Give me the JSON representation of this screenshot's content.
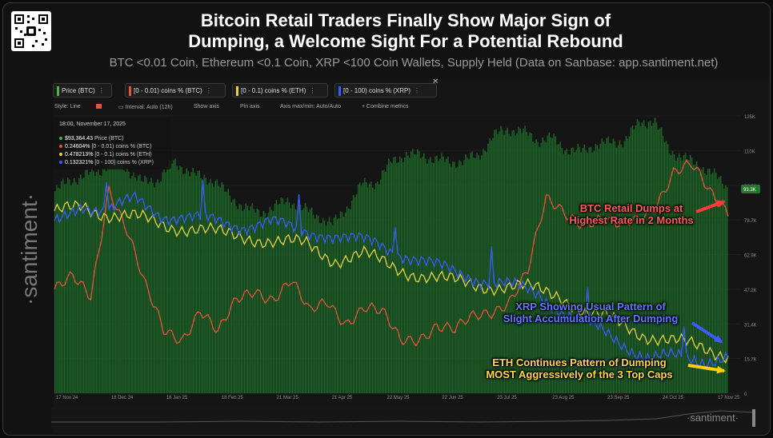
{
  "header": {
    "title_line1": "Bitcoin Retail Traders Finally Show Major Sign of",
    "title_line2": "Dumping, a Welcome Sight For a Potential Rebound",
    "subtitle": "BTC <0.01 Coin, Ethereum <0.1 Coin, XRP <100 Coin Wallets, Supply Held (Data on Sanbase: app.santiment.net)"
  },
  "brand": {
    "side_logo": "·santiment·",
    "watermark": "·santiment·"
  },
  "chips": [
    {
      "label": "Price (BTC)",
      "color": "#4caf50"
    },
    {
      "label": "[0 - 0.01) coins % (BTC)",
      "color": "#e8533a"
    },
    {
      "label": "[0 - 0.1) coins % (ETH)",
      "color": "#e8d23a"
    },
    {
      "label": "[0 - 100) coins % (XRP)",
      "color": "#3a5bff"
    }
  ],
  "toolbar": {
    "style": "Style: Line",
    "interval": "Interval: Auto (12h)",
    "show_axis": "Show axis",
    "pin_axis": "Pin axis",
    "axis_max": "Axis max/min: Auto/Auto",
    "combine": "+ Combine metrics"
  },
  "tooltip": {
    "date": "18:00, November 17, 2025",
    "rows": [
      {
        "value": "$93,364.43",
        "name": "Price (BTC)",
        "color": "#4caf50"
      },
      {
        "value": "0.24604%",
        "name": "[0 - 0.01) coins % (BTC)",
        "color": "#e8533a"
      },
      {
        "value": "0.478213%",
        "name": "[0 - 0.1) coins % (ETH)",
        "color": "#e8d23a"
      },
      {
        "value": "0.132321%",
        "name": "[0 - 100) coins % (XRP)",
        "color": "#3a5bff"
      }
    ]
  },
  "annotations": {
    "btc": [
      "BTC Retail Dumps at",
      "Highest Rate in 2 Months"
    ],
    "xrp": [
      "XRP Showing Usual Pattern of",
      "Slight Accumulation After Dumping"
    ],
    "eth": [
      "ETH Continues Pattern of Dumping",
      "MOST Aggressively of the 3 Top Caps"
    ]
  },
  "colors": {
    "btc_price": "#1f6f2a",
    "btc_retail": "#e8533a",
    "eth_retail": "#e8d23a",
    "xrp_retail": "#3a5bff",
    "background": "#121212"
  },
  "chart_data": {
    "type": "line",
    "x_ticks": [
      "17 Nov 24",
      "18 Dec 24",
      "18 Jan 25",
      "18 Feb 25",
      "21 Mar 25",
      "21 Apr 25",
      "22 May 25",
      "22 Jun 25",
      "23 Jul 25",
      "23 Aug 25",
      "23 Sep 25",
      "24 Oct 25",
      "17 Nov 25"
    ],
    "y_ticks": [
      "125K",
      "110K",
      "93.3K",
      "78.7K",
      "62.9K",
      "47.2K",
      "31.4K",
      "15.7K",
      "0"
    ],
    "y_max": 125000,
    "current_price_label": "93.3K",
    "series": [
      {
        "name": "Price (BTC)",
        "color": "#1f6f2a",
        "style": "bars",
        "values": [
          91000,
          96000,
          98000,
          100000,
          105000,
          101000,
          95000,
          96000,
          104000,
          101000,
          97000,
          96000,
          88000,
          84000,
          81000,
          84000,
          87000,
          83000,
          80000,
          76000,
          84000,
          94000,
          95000,
          104000,
          108000,
          107000,
          106000,
          104000,
          105000,
          107000,
          116000,
          119000,
          118000,
          114000,
          115000,
          110000,
          109000,
          112000,
          113000,
          114000,
          122000,
          123000,
          110000,
          106000,
          103000,
          99000,
          93000
        ]
      },
      {
        "name": "[0 - 0.01) coins % (BTC)",
        "color": "#e8533a",
        "values": [
          0.2,
          0.205,
          0.195,
          0.26,
          0.235,
          0.2,
          0.175,
          0.172,
          0.19,
          0.174,
          0.192,
          0.2,
          0.196,
          0.205,
          0.185,
          0.193,
          0.182,
          0.19,
          0.185,
          0.17,
          0.173,
          0.18,
          0.175,
          0.183,
          0.188,
          0.195,
          0.21,
          0.25,
          0.245,
          0.24,
          0.24,
          0.235,
          0.24,
          0.25,
          0.268,
          0.27,
          0.255,
          0.246
        ]
      },
      {
        "name": "[0 - 0.1) coins % (ETH)",
        "color": "#e8d23a",
        "values": [
          0.62,
          0.63,
          0.62,
          0.616,
          0.61,
          0.606,
          0.6,
          0.598,
          0.592,
          0.59,
          0.575,
          0.58,
          0.568,
          0.56,
          0.553,
          0.55,
          0.548,
          0.545,
          0.54,
          0.52,
          0.512,
          0.5,
          0.492,
          0.486,
          0.48
        ]
      },
      {
        "name": "[0 - 100) coins % (XRP)",
        "color": "#3a5bff",
        "values": [
          0.31,
          0.34,
          0.33,
          0.345,
          0.325,
          0.32,
          0.315,
          0.31,
          0.315,
          0.302,
          0.3,
          0.29,
          0.285,
          0.27,
          0.255,
          0.245,
          0.235,
          0.226,
          0.215,
          0.19,
          0.17,
          0.15,
          0.13,
          0.128,
          0.125,
          0.132
        ]
      }
    ]
  }
}
